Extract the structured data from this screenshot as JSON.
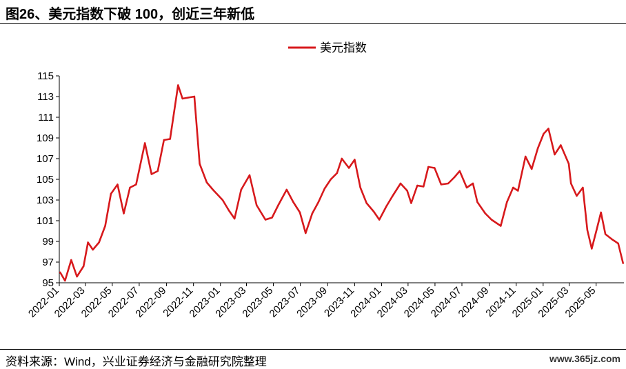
{
  "page": {
    "title": "图26、美元指数下破 100，创近三年新低",
    "source": "资料来源：Wind，兴业证券经济与金融研究院整理",
    "watermark": "www.365jz.com"
  },
  "chart_data": {
    "type": "line",
    "title": "",
    "xlabel": "",
    "ylabel": "",
    "ylim": [
      95,
      115
    ],
    "yticks": [
      95,
      97,
      99,
      101,
      103,
      105,
      107,
      109,
      111,
      113,
      115
    ],
    "xlim": [
      "2022-01-01",
      "2025-07-03"
    ],
    "xticks": [
      "2022-01",
      "2022-03",
      "2022-05",
      "2022-07",
      "2022-09",
      "2022-11",
      "2023-01",
      "2023-03",
      "2023-05",
      "2023-07",
      "2023-09",
      "2023-11",
      "2024-01",
      "2024-03",
      "2024-05",
      "2024-07",
      "2024-09",
      "2024-11",
      "2025-01",
      "2025-03",
      "2025-05"
    ],
    "grid": false,
    "legend": "top-center",
    "series": [
      {
        "name": "美元指数",
        "color": "#d7191c",
        "x": [
          "2022-01-03",
          "2022-01-14",
          "2022-01-28",
          "2022-02-10",
          "2022-02-25",
          "2022-03-07",
          "2022-03-18",
          "2022-04-01",
          "2022-04-15",
          "2022-04-28",
          "2022-05-13",
          "2022-05-27",
          "2022-06-10",
          "2022-06-24",
          "2022-07-14",
          "2022-07-29",
          "2022-08-12",
          "2022-08-26",
          "2022-09-09",
          "2022-09-27",
          "2022-10-07",
          "2022-10-20",
          "2022-11-03",
          "2022-11-15",
          "2022-12-01",
          "2022-12-15",
          "2023-01-06",
          "2023-01-20",
          "2023-02-02",
          "2023-02-17",
          "2023-03-08",
          "2023-03-24",
          "2023-04-13",
          "2023-04-28",
          "2023-05-12",
          "2023-05-31",
          "2023-06-15",
          "2023-06-30",
          "2023-07-13",
          "2023-07-28",
          "2023-08-11",
          "2023-08-25",
          "2023-09-08",
          "2023-09-22",
          "2023-10-03",
          "2023-10-19",
          "2023-11-01",
          "2023-11-14",
          "2023-11-28",
          "2023-12-14",
          "2023-12-27",
          "2024-01-12",
          "2024-01-26",
          "2024-02-13",
          "2024-02-28",
          "2024-03-08",
          "2024-03-22",
          "2024-04-05",
          "2024-04-16",
          "2024-04-30",
          "2024-05-15",
          "2024-05-31",
          "2024-06-14",
          "2024-06-26",
          "2024-07-12",
          "2024-07-26",
          "2024-08-05",
          "2024-08-23",
          "2024-09-06",
          "2024-09-27",
          "2024-10-11",
          "2024-10-25",
          "2024-11-05",
          "2024-11-22",
          "2024-12-06",
          "2024-12-20",
          "2025-01-02",
          "2025-01-13",
          "2025-01-27",
          "2025-02-10",
          "2025-02-28",
          "2025-03-05",
          "2025-03-18",
          "2025-04-01",
          "2025-04-11",
          "2025-04-21",
          "2025-05-02",
          "2025-05-12",
          "2025-05-22",
          "2025-06-06",
          "2025-06-20",
          "2025-07-01"
        ],
        "values": [
          96.0,
          95.2,
          97.2,
          95.6,
          96.6,
          98.9,
          98.2,
          98.9,
          100.5,
          103.6,
          104.5,
          101.7,
          104.2,
          104.5,
          108.5,
          105.5,
          105.8,
          108.8,
          108.9,
          114.1,
          112.8,
          112.9,
          113.0,
          106.5,
          104.7,
          104.0,
          103.0,
          102.0,
          101.2,
          104.0,
          105.4,
          102.5,
          101.1,
          101.3,
          102.5,
          104.0,
          102.8,
          101.8,
          99.8,
          101.7,
          102.8,
          104.1,
          105.0,
          105.6,
          107.0,
          106.1,
          106.9,
          104.2,
          102.7,
          101.9,
          101.1,
          102.4,
          103.4,
          104.6,
          103.9,
          102.7,
          104.4,
          104.3,
          106.2,
          106.1,
          104.5,
          104.6,
          105.2,
          105.8,
          104.2,
          104.6,
          102.8,
          101.7,
          101.1,
          100.5,
          102.8,
          104.2,
          103.9,
          107.2,
          106.0,
          108.0,
          109.4,
          109.9,
          107.4,
          108.3,
          106.5,
          104.6,
          103.4,
          104.2,
          100.1,
          98.3,
          100.1,
          101.8,
          99.7,
          99.2,
          98.8,
          96.9
        ]
      }
    ]
  }
}
